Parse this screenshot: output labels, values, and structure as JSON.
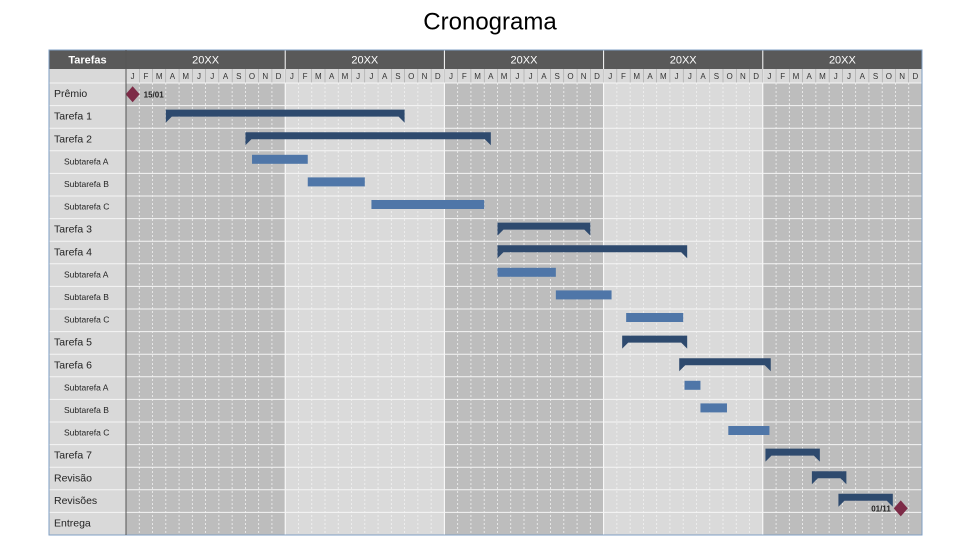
{
  "chart_data": {
    "type": "gantt",
    "title": "Cronograma",
    "task_header": "Tarefas",
    "years": [
      "20XX",
      "20XX",
      "20XX",
      "20XX",
      "20XX"
    ],
    "months": [
      "J",
      "F",
      "M",
      "A",
      "M",
      "J",
      "J",
      "A",
      "S",
      "O",
      "N",
      "D"
    ],
    "xlim": [
      0,
      60
    ],
    "summary_color": "#2e4a6e",
    "sub_color": "#4f76a8",
    "milestone_color": "#7d2b47",
    "tasks": [
      {
        "name": "Prêmio",
        "level": 1,
        "milestone": 0.5,
        "milestone_label": "15/01"
      },
      {
        "name": "Tarefa 1",
        "level": 1,
        "start": 3,
        "end": 21
      },
      {
        "name": "Tarefa 2",
        "level": 1,
        "start": 9,
        "end": 27.5
      },
      {
        "name": "Subtarefa A",
        "level": 2,
        "start": 9.5,
        "end": 13.7
      },
      {
        "name": "Subtarefa B",
        "level": 2,
        "start": 13.7,
        "end": 18
      },
      {
        "name": "Subtarefa C",
        "level": 2,
        "start": 18.5,
        "end": 27
      },
      {
        "name": "Tarefa 3",
        "level": 1,
        "start": 28,
        "end": 35
      },
      {
        "name": "Tarefa 4",
        "level": 1,
        "start": 28,
        "end": 42.3
      },
      {
        "name": "Subtarefa A",
        "level": 2,
        "start": 28,
        "end": 32.4
      },
      {
        "name": "Subtarefa B",
        "level": 2,
        "start": 32.4,
        "end": 36.6
      },
      {
        "name": "Subtarefa C",
        "level": 2,
        "start": 37.7,
        "end": 42
      },
      {
        "name": "Tarefa 5",
        "level": 1,
        "start": 37.4,
        "end": 42.3
      },
      {
        "name": "Tarefa 6",
        "level": 1,
        "start": 41.7,
        "end": 48.6
      },
      {
        "name": "Subtarefa A",
        "level": 2,
        "start": 42.1,
        "end": 43.3
      },
      {
        "name": "Subtarefa B",
        "level": 2,
        "start": 43.3,
        "end": 45.3
      },
      {
        "name": "Subtarefa C",
        "level": 2,
        "start": 45.4,
        "end": 48.5
      },
      {
        "name": "Tarefa 7",
        "level": 1,
        "start": 48.2,
        "end": 52.3
      },
      {
        "name": "Revisão",
        "level": 1,
        "start": 51.7,
        "end": 54.3
      },
      {
        "name": "Revisões",
        "level": 1,
        "start": 53.7,
        "end": 57.8
      },
      {
        "name": "Entrega",
        "level": 1,
        "milestone": 58.4,
        "milestone_label": "01/11"
      }
    ]
  }
}
